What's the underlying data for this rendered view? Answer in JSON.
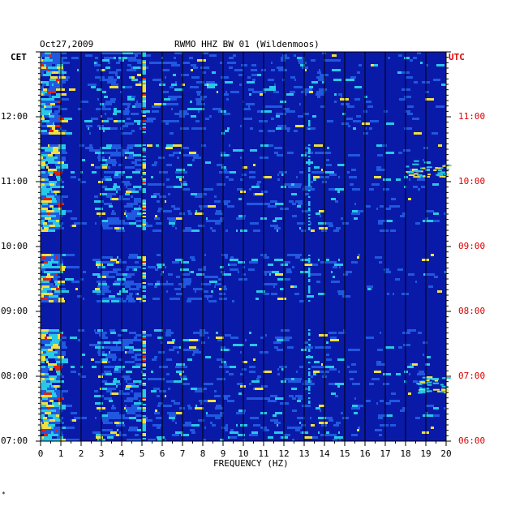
{
  "header": {
    "date": "Oct27,2009",
    "station": "RWMO HHZ BW 01 (Wildenmoos)"
  },
  "footer": {
    "mark": "*"
  },
  "chart_data": {
    "type": "heatmap",
    "title": "RWMO HHZ BW 01 (Wildenmoos)",
    "date": "Oct27,2009",
    "xlabel": "FREQUENCY (HZ)",
    "left_axis_label": "CET",
    "right_axis_label": "UTC",
    "x_ticks": [
      "0",
      "1",
      "2",
      "3",
      "4",
      "5",
      "6",
      "7",
      "8",
      "9",
      "10",
      "11",
      "12",
      "13",
      "14",
      "15",
      "16",
      "17",
      "18",
      "19",
      "20"
    ],
    "xlim": [
      0,
      20
    ],
    "left_ticks": [
      "12:00",
      "11:00",
      "10:00",
      "09:00",
      "08:00",
      "07:00"
    ],
    "right_ticks": [
      "11:00",
      "10:00",
      "09:00",
      "08:00",
      "07:00",
      "06:00"
    ],
    "cet_range": [
      "07:00",
      "13:00"
    ],
    "utc_range": [
      "06:00",
      "12:00"
    ],
    "time_direction": "increasing upward",
    "grid": true,
    "background_color": "#0a1aa8",
    "colormap": [
      "#0a1aa8",
      "#2058e0",
      "#28c8e8",
      "#f0e040",
      "#e02010"
    ],
    "highlights": [
      {
        "freq": [
          0.0,
          1.0
        ],
        "time_cet": [
          "07:00",
          "13:00"
        ],
        "level": "high"
      },
      {
        "freq": [
          2.6,
          4.8
        ],
        "time_cet": [
          "07:10",
          "12:05"
        ],
        "level": "medium"
      },
      {
        "freq": [
          5.0,
          5.2
        ],
        "time_cet": [
          "07:00",
          "13:00"
        ],
        "level": "spike"
      },
      {
        "freq": [
          13.2,
          13.3
        ],
        "time_cet": [
          "07:30",
          "12:00"
        ],
        "level": "line"
      },
      {
        "freq": [
          18.5,
          20.0
        ],
        "time_cet": [
          "07:45",
          "08:00"
        ],
        "level": "medium"
      },
      {
        "freq": [
          18.0,
          20.0
        ],
        "time_cet": [
          "11:05",
          "11:20"
        ],
        "level": "medium"
      }
    ],
    "gaps_cet": [
      [
        "11:35",
        "11:45"
      ],
      [
        "08:45",
        "09:10"
      ],
      [
        "09:55",
        "10:15"
      ]
    ]
  }
}
